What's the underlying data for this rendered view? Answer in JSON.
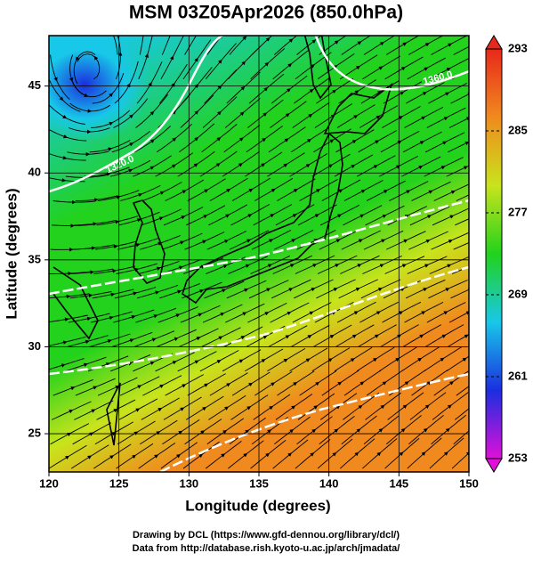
{
  "chart_data": {
    "type": "map",
    "title": "MSM 03Z05Apr2026 (850.0hPa)",
    "x_label": "Longitude (degrees)",
    "y_label": "Latitude (degrees)",
    "xlim": [
      120,
      150
    ],
    "ylim": [
      22.8,
      47.9
    ],
    "xticks": [
      120,
      125,
      130,
      135,
      140,
      145,
      150
    ],
    "yticks": [
      25,
      30,
      35,
      40,
      45
    ],
    "grid": true,
    "colorbar": {
      "clim": [
        253,
        293
      ],
      "ticks": [
        253,
        261,
        269,
        277,
        285,
        293
      ],
      "colors": [
        "#e010d8",
        "#1a2ee0",
        "#18c8e8",
        "#22d21c",
        "#c8e41c",
        "#f08a1e",
        "#e8281c"
      ]
    },
    "contours": [
      {
        "value": 1320,
        "label": "1320.0"
      },
      {
        "value": 1360,
        "label": "1360.0"
      }
    ],
    "footer": [
      "Drawing by DCL (https://www.gfd-dennou.org/library/dcl/)",
      "Data from http://database.rish.kyoto-u.ac.jp/arch/jmadata/"
    ]
  }
}
